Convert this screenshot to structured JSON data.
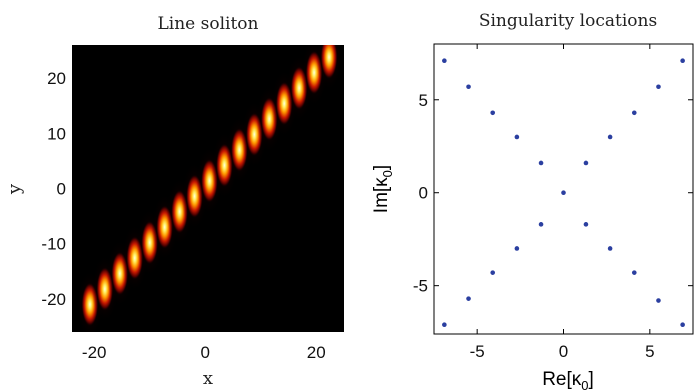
{
  "chart_data": [
    {
      "type": "heatmap",
      "title": "Line soliton",
      "xlabel": "x",
      "ylabel": "y",
      "xlim": [
        -24,
        25
      ],
      "ylim": [
        -26,
        26
      ],
      "xticks": [
        -20,
        0,
        20
      ],
      "yticks": [
        -20,
        -10,
        0,
        10,
        20
      ],
      "colormap": "hot",
      "background": "#000000",
      "soliton_line": {
        "slope": 1.04,
        "intercept": 0.6
      },
      "peaks_along_line": [
        -21,
        -18.2,
        -15.4,
        -12.6,
        -9.8,
        -7,
        -4.2,
        -1.4,
        1.4,
        4.2,
        7,
        9.8,
        12.6,
        15.4,
        18.2,
        21,
        23.8
      ]
    },
    {
      "type": "scatter",
      "title": "Singularity locations",
      "xlabel": "Re[κ0]",
      "ylabel": "Im[κ0]",
      "xlim": [
        -7.5,
        7.5
      ],
      "ylim": [
        -7.6,
        8.0
      ],
      "xticks": [
        -5,
        0,
        5
      ],
      "yticks": [
        -5,
        0,
        5
      ],
      "marker_color": "#2b3fa0",
      "x": [
        -6.9,
        -5.5,
        -4.1,
        -2.7,
        -1.3,
        0,
        1.3,
        2.7,
        4.1,
        5.5,
        6.9,
        -6.9,
        -5.5,
        -4.1,
        -2.7,
        -1.3,
        1.3,
        2.7,
        4.1,
        5.5,
        6.9
      ],
      "y": [
        7.1,
        5.7,
        4.3,
        3.0,
        1.6,
        0,
        1.6,
        3.0,
        4.3,
        5.7,
        7.1,
        -7.1,
        -5.7,
        -4.3,
        -3.0,
        -1.7,
        -1.7,
        -3.0,
        -4.3,
        -5.8,
        -7.1
      ]
    }
  ]
}
